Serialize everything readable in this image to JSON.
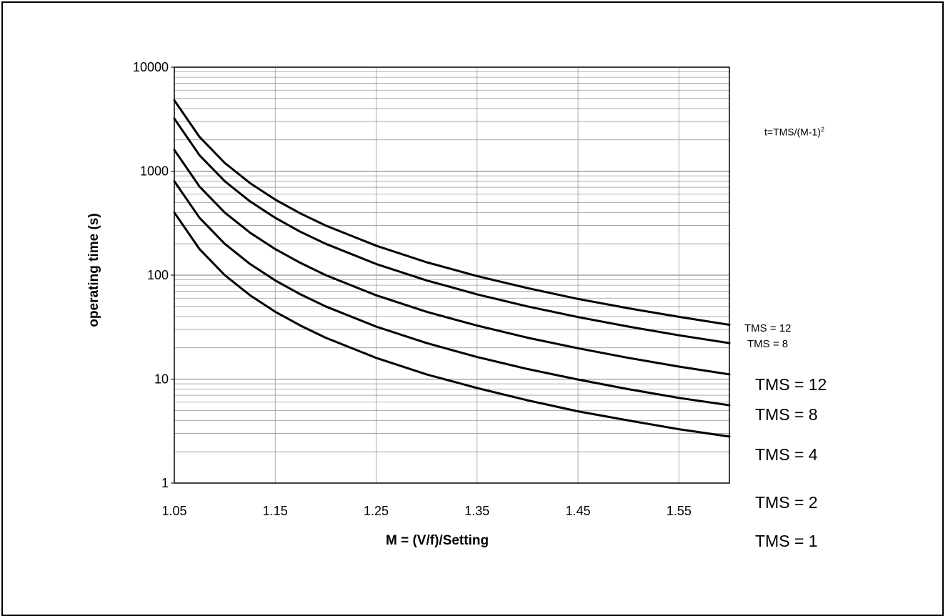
{
  "chart_data": {
    "type": "line",
    "title": "",
    "xlabel": "M = (V/f)/Setting",
    "ylabel": "operating time (s)",
    "xlim": [
      1.05,
      1.6
    ],
    "ylim": [
      1,
      10000
    ],
    "yscale": "log",
    "xticks": [
      "1.05",
      "1.15",
      "1.25",
      "1.35",
      "1.45",
      "1.55"
    ],
    "yticks": [
      "1",
      "10",
      "100",
      "1000",
      "10000"
    ],
    "grid": true,
    "equation": {
      "main": "t=TMS/(M-1)",
      "sup": "2"
    },
    "x": [
      1.05,
      1.075,
      1.1,
      1.125,
      1.15,
      1.175,
      1.2,
      1.25,
      1.3,
      1.35,
      1.4,
      1.45,
      1.5,
      1.55,
      1.6
    ],
    "series": [
      {
        "name": "TMS = 12",
        "values": [
          4800,
          2133,
          1200,
          768,
          533,
          392,
          300,
          192,
          133,
          98,
          75,
          59,
          48,
          39.7,
          33.3
        ]
      },
      {
        "name": "TMS = 8",
        "values": [
          3200,
          1422,
          800,
          512,
          356,
          261,
          200,
          128,
          89,
          65.3,
          50,
          39.5,
          32,
          26.4,
          22.2
        ]
      },
      {
        "name": "TMS = 4",
        "values": [
          1600,
          711,
          400,
          256,
          178,
          131,
          100,
          64,
          44.4,
          32.7,
          25,
          19.8,
          16,
          13.2,
          11.1
        ]
      },
      {
        "name": "TMS = 2",
        "values": [
          800,
          356,
          200,
          128,
          89,
          65.3,
          50,
          32,
          22.2,
          16.3,
          12.5,
          9.9,
          8,
          6.6,
          5.6
        ]
      },
      {
        "name": "TMS = 1",
        "values": [
          400,
          178,
          100,
          64,
          44.4,
          32.7,
          25,
          16,
          11.1,
          8.2,
          6.25,
          4.9,
          4,
          3.3,
          2.8
        ]
      }
    ],
    "end_labels_small": [
      "TMS = 12",
      "TMS = 8"
    ],
    "side_labels": [
      "TMS = 12",
      "TMS = 8",
      "TMS = 4",
      "TMS = 2",
      "TMS = 1"
    ],
    "line_color": "#000000",
    "grid_color": "#9a9a9a"
  }
}
